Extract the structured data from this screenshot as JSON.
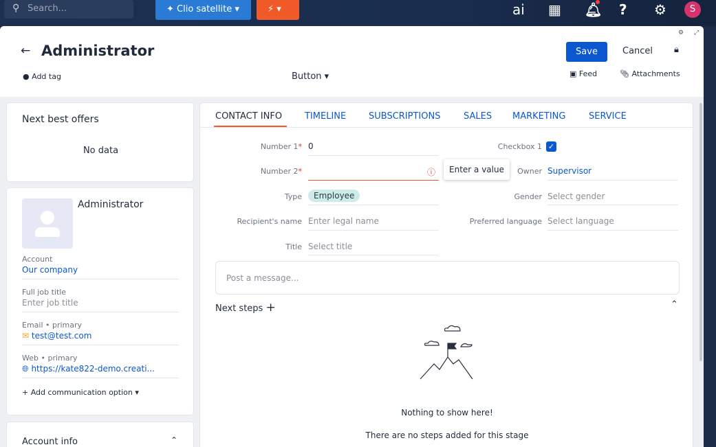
{
  "topbar": {
    "search_placeholder": "Search...",
    "workspace": "Clio satellite",
    "ai_label": "ai",
    "avatar_initial": "S"
  },
  "header": {
    "title": "Administrator",
    "save": "Save",
    "cancel": "Cancel",
    "add_tag": "Add tag",
    "button_dd": "Button",
    "feed": "Feed",
    "attachments": "Attachments"
  },
  "nbo": {
    "title": "Next best offers",
    "empty": "No data"
  },
  "profile": {
    "name": "Administrator",
    "account_label": "Account",
    "account": "Our company",
    "job_label": "Full job title",
    "job_placeholder": "Enter job title",
    "email_label": "Email • primary",
    "email": "test@test.com",
    "web_label": "Web • primary",
    "web": "https://kate822-demo.creati...",
    "add_comm": "Add communication option"
  },
  "account_info": {
    "title": "Account info"
  },
  "tabs": [
    "CONTACT INFO",
    "TIMELINE",
    "SUBSCRIPTIONS",
    "SALES",
    "MARKETING",
    "SERVICE"
  ],
  "form": {
    "number1_label": "Number 1",
    "number1": "0",
    "number2_label": "Number 2",
    "number2_tooltip": "Enter a value",
    "type_label": "Type",
    "type": "Employee",
    "recipient_label": "Recipient's name",
    "recipient_placeholder": "Enter legal name",
    "title_label": "Title",
    "title_placeholder": "Select title",
    "checkbox1_label": "Checkbox 1",
    "checkbox1": true,
    "owner_label": "Owner",
    "owner": "Supervisor",
    "gender_label": "Gender",
    "gender_placeholder": "Select gender",
    "lang_label": "Preferred language",
    "lang_placeholder": "Select language"
  },
  "post": {
    "placeholder": "Post a message..."
  },
  "next_steps": {
    "title": "Next steps",
    "empty_title": "Nothing to show here!",
    "empty_sub": "There are no steps added for this stage"
  },
  "colors": {
    "accent": "#0b57d0",
    "save": "#0b57d0",
    "active_tab": "#f05a28",
    "chip": "#cdece8"
  }
}
